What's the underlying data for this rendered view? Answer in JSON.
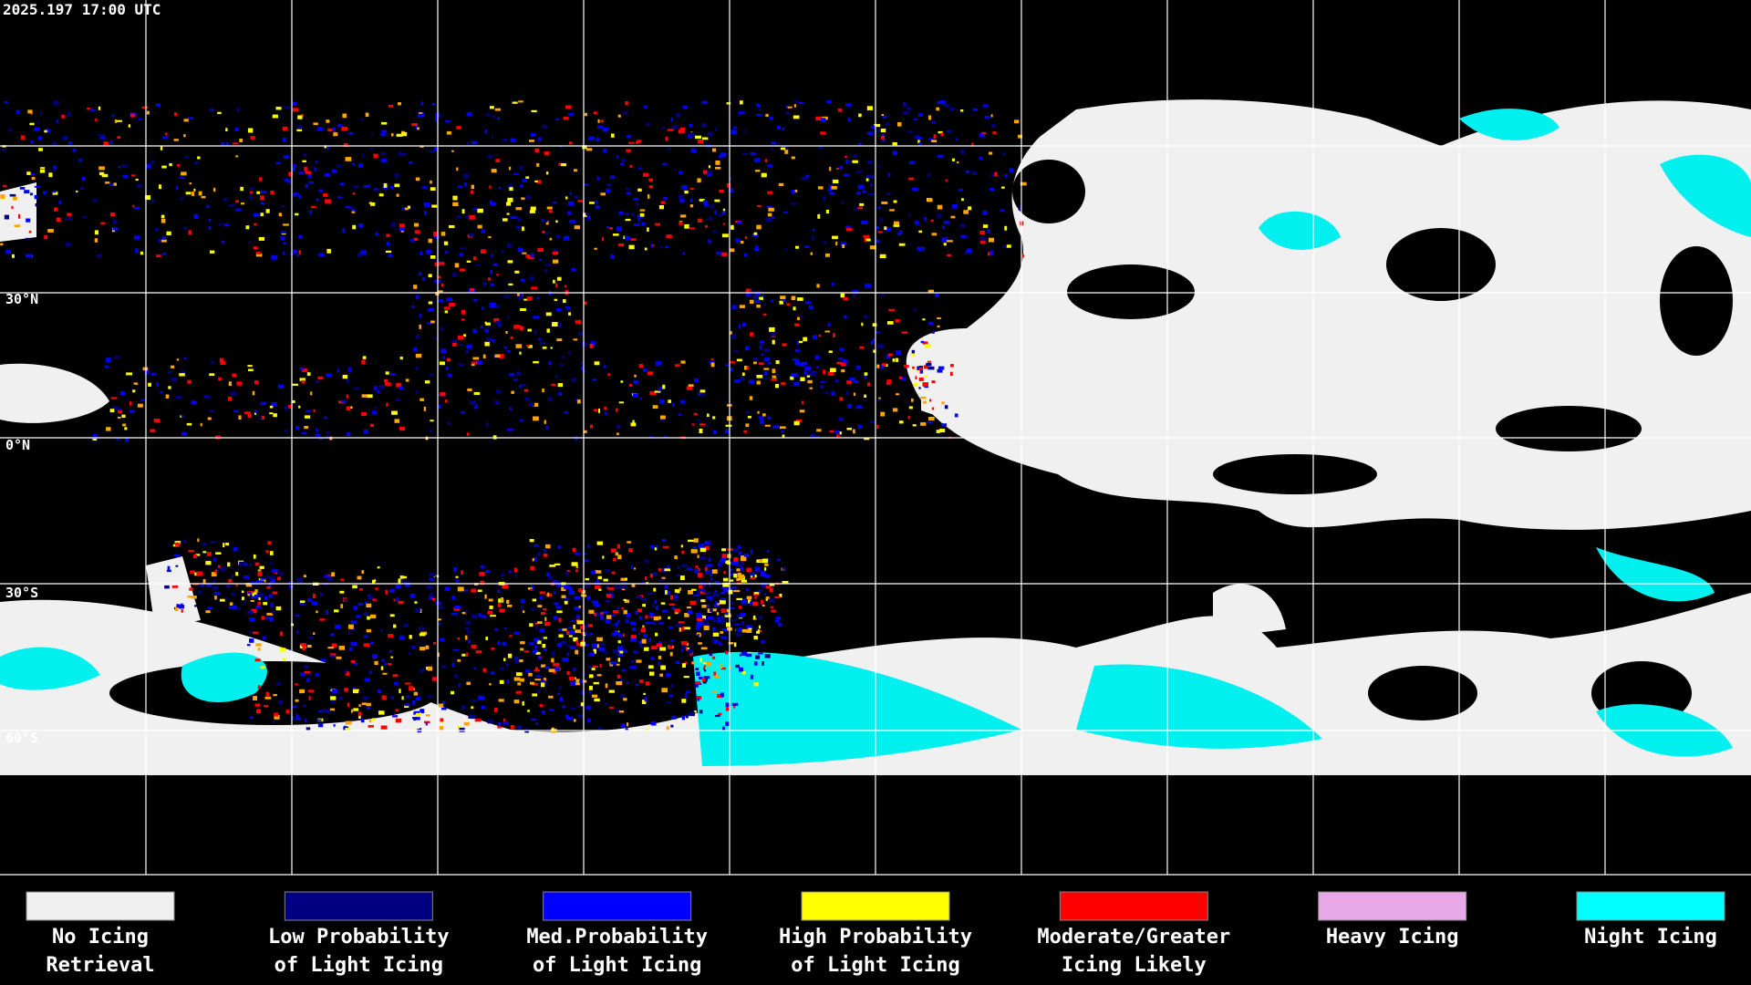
{
  "header": {
    "timestamp": "2025.197 17:00 UTC"
  },
  "latitude_labels": [
    "30°N",
    "0°N",
    "30°S",
    "60°S"
  ],
  "legend": [
    {
      "lines": [
        "No Icing",
        "Retrieval"
      ],
      "color": "#f0f0f0"
    },
    {
      "lines": [
        "Low Probability",
        "of Light Icing"
      ],
      "color": "#000080"
    },
    {
      "lines": [
        "Med.Probability",
        "of Light Icing"
      ],
      "color": "#0000ff"
    },
    {
      "lines": [
        "High Probability",
        "of Light Icing"
      ],
      "color": "#ffff00"
    },
    {
      "lines": [
        "Moderate/Greater",
        "Icing Likely"
      ],
      "color": "#ff0000"
    },
    {
      "lines": [
        "Heavy Icing"
      ],
      "color": "#e8a8e8"
    },
    {
      "lines": [
        "Night Icing"
      ],
      "color": "#00ffff"
    }
  ]
}
